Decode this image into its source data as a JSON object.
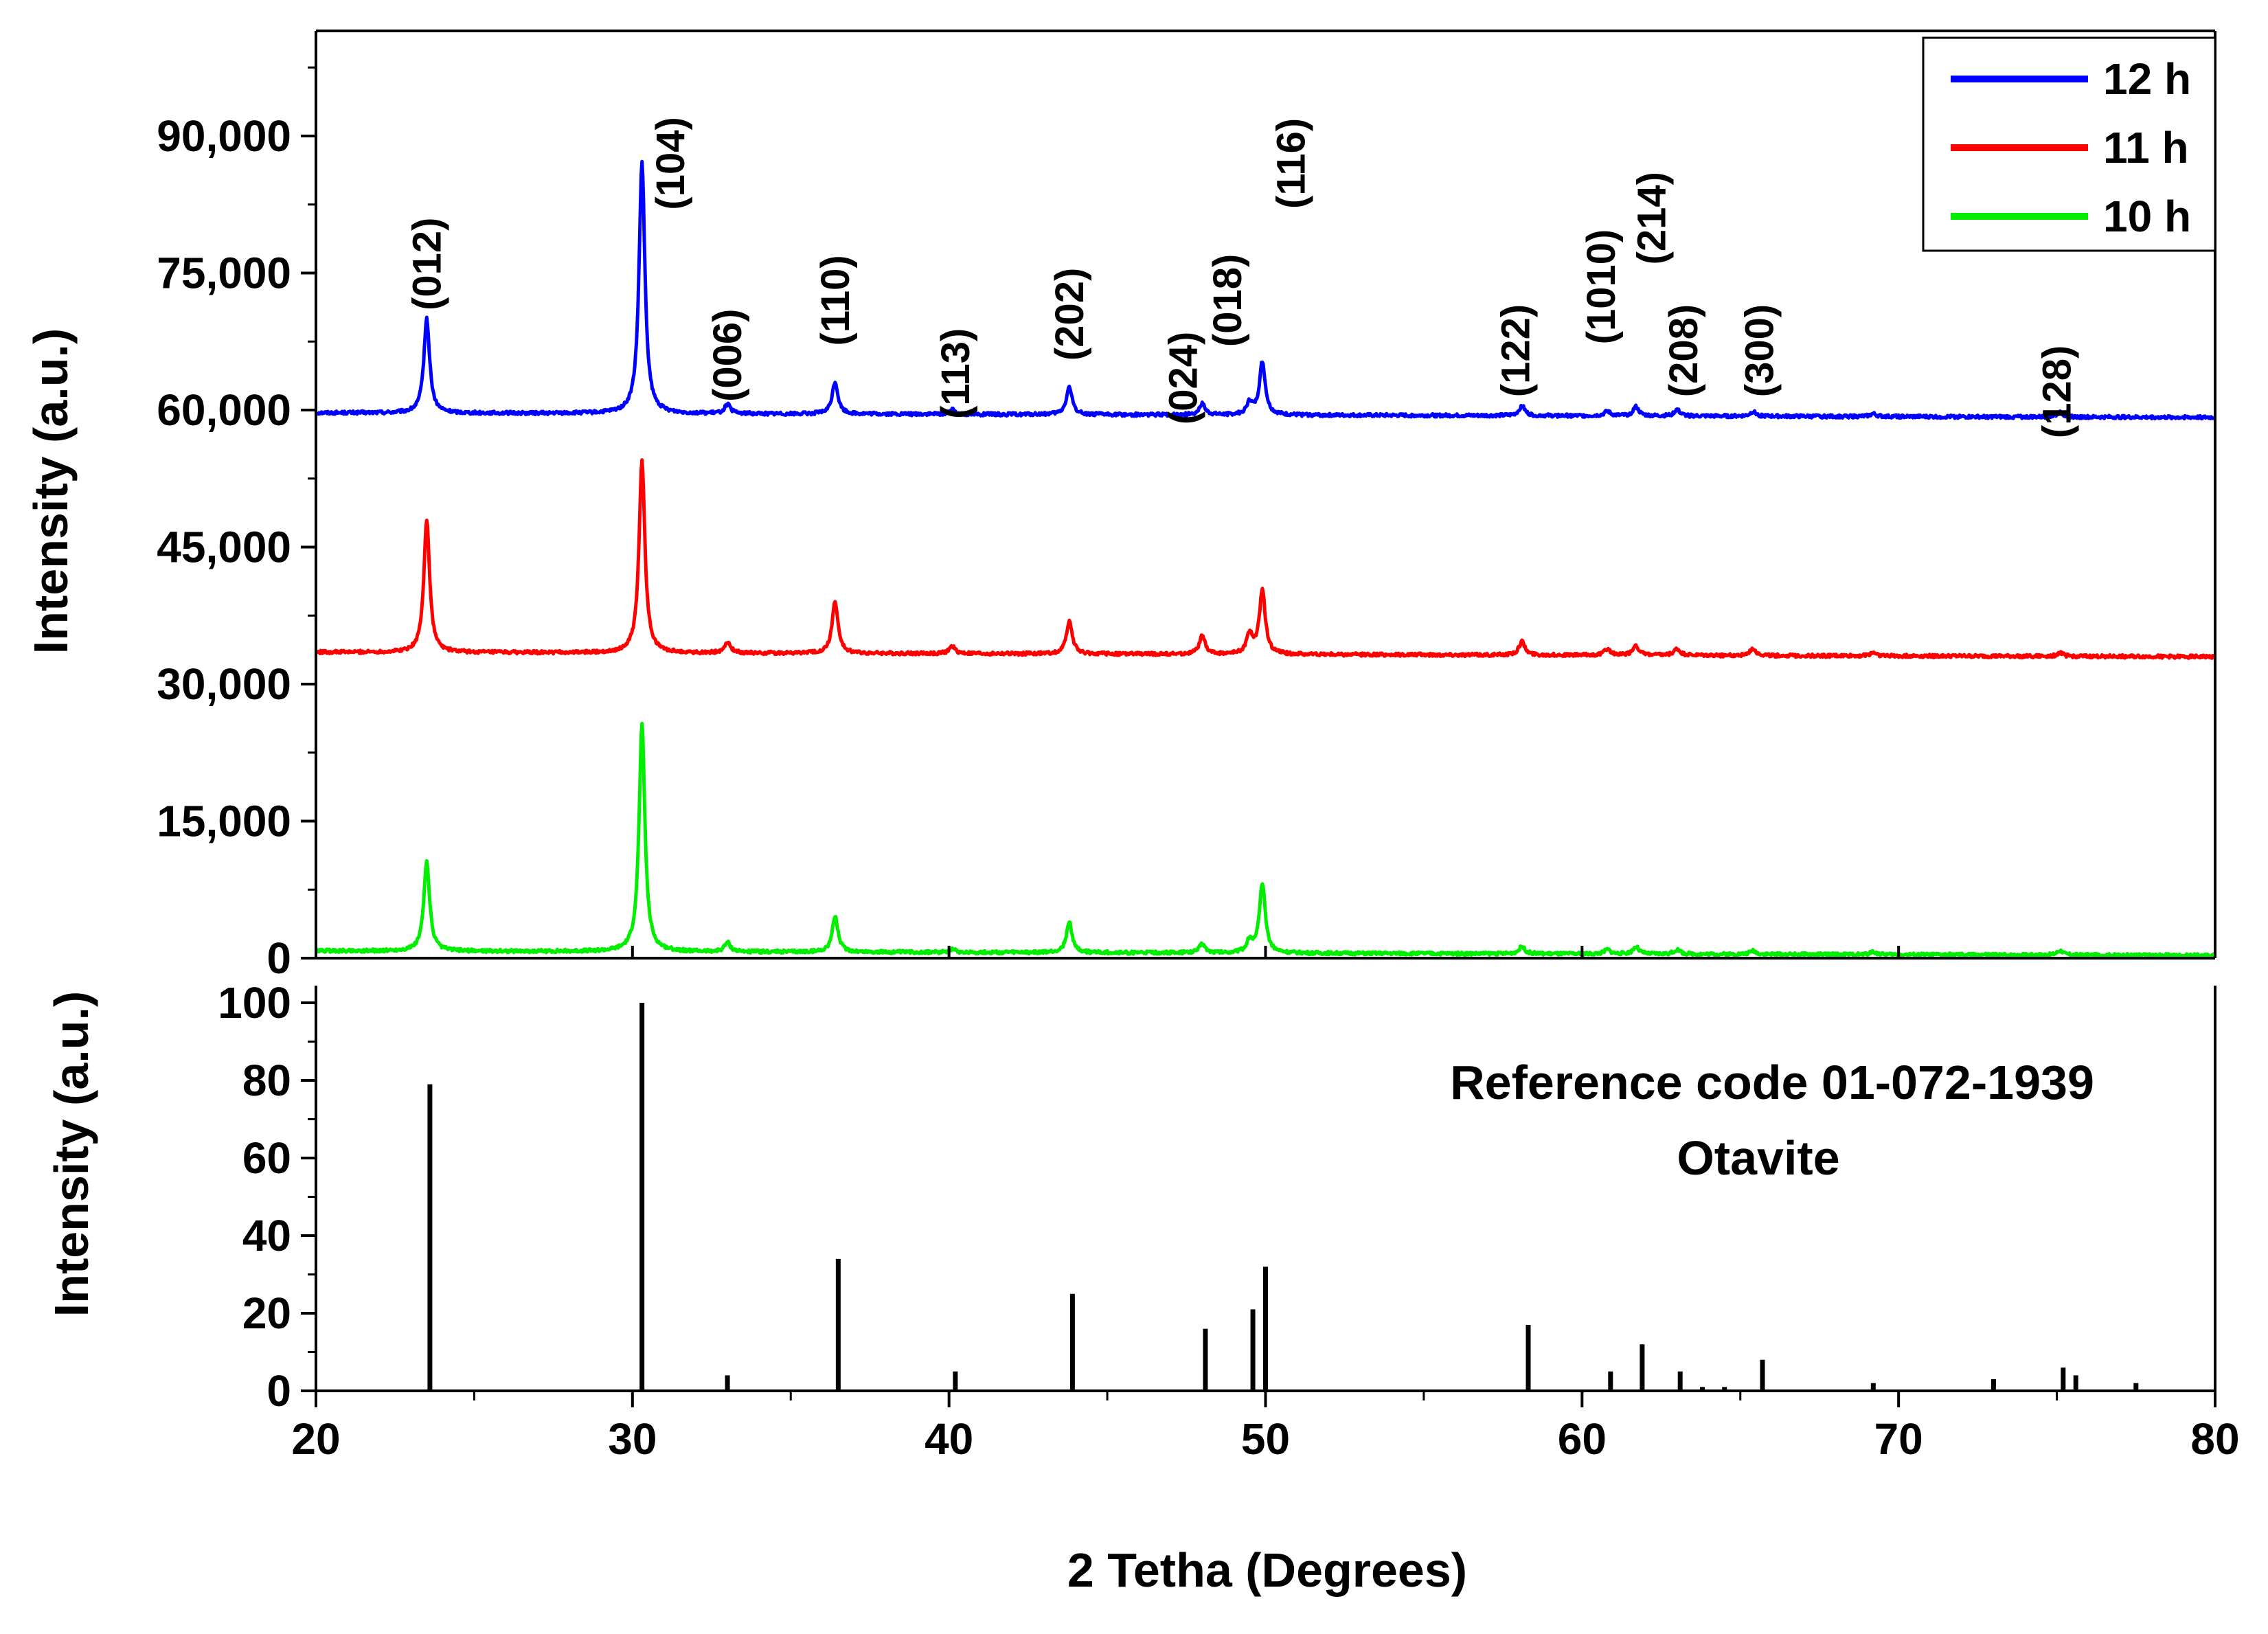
{
  "chart_data": {
    "type": "line",
    "xlabel": "2 Tetha (Degrees)",
    "xlim": [
      20,
      80
    ],
    "x_ticks": [
      "20",
      "30",
      "40",
      "50",
      "60",
      "70",
      "80"
    ],
    "panels": [
      {
        "name": "xrd-patterns",
        "ylabel": "Intensity (a.u.)",
        "ylim": [
          0,
          100000
        ],
        "y_ticks": [
          "0",
          "15,000",
          "30,000",
          "45,000",
          "60,000",
          "75,000",
          "90,000"
        ],
        "y_tick_values": [
          0,
          15000,
          30000,
          45000,
          60000,
          75000,
          90000
        ],
        "series": [
          {
            "name": "12 h",
            "color": "#0000ff",
            "baseline": 59700,
            "end_baseline": 59200,
            "peaks": [
              [
                23.5,
                10300
              ],
              [
                30.3,
                27500
              ],
              [
                33.0,
                1000
              ],
              [
                36.4,
                3500
              ],
              [
                40.1,
                500
              ],
              [
                43.8,
                3000
              ],
              [
                48.0,
                1200
              ],
              [
                49.5,
                1300
              ],
              [
                49.9,
                5800
              ],
              [
                58.1,
                1100
              ],
              [
                60.8,
                500
              ],
              [
                61.7,
                1000
              ],
              [
                63.0,
                700
              ],
              [
                65.4,
                500
              ],
              [
                69.2,
                300
              ],
              [
                75.1,
                500
              ]
            ]
          },
          {
            "name": "11 h",
            "color": "#ff0000",
            "baseline": 33500,
            "end_baseline": 33000,
            "peaks": [
              [
                23.5,
                14500
              ],
              [
                30.3,
                21000
              ],
              [
                33.0,
                1200
              ],
              [
                36.4,
                5700
              ],
              [
                40.1,
                800
              ],
              [
                43.8,
                3600
              ],
              [
                48.0,
                2000
              ],
              [
                49.5,
                2200
              ],
              [
                49.9,
                7000
              ],
              [
                58.1,
                1500
              ],
              [
                60.8,
                700
              ],
              [
                61.7,
                1100
              ],
              [
                63.0,
                700
              ],
              [
                65.4,
                800
              ],
              [
                69.2,
                400
              ],
              [
                75.1,
                400
              ]
            ]
          },
          {
            "name": "10 h",
            "color": "#00ee00",
            "baseline": 800,
            "end_baseline": 300,
            "peaks": [
              [
                23.5,
                9800
              ],
              [
                30.3,
                24800
              ],
              [
                33.0,
                1000
              ],
              [
                36.4,
                3900
              ],
              [
                40.1,
                400
              ],
              [
                43.8,
                3300
              ],
              [
                48.0,
                1000
              ],
              [
                49.5,
                1300
              ],
              [
                49.9,
                7600
              ],
              [
                58.1,
                800
              ],
              [
                60.8,
                500
              ],
              [
                61.7,
                800
              ],
              [
                63.0,
                500
              ],
              [
                65.4,
                400
              ],
              [
                69.2,
                300
              ],
              [
                75.1,
                500
              ]
            ]
          }
        ],
        "peak_labels": [
          {
            "hkl": "(012)",
            "x": 23.5,
            "y": 76000
          },
          {
            "hkl": "(104)",
            "x": 31.2,
            "y": 87000
          },
          {
            "hkl": "(006)",
            "x": 33.0,
            "y": 66000
          },
          {
            "hkl": "(110)",
            "x": 36.4,
            "y": 72000
          },
          {
            "hkl": "(113)",
            "x": 40.2,
            "y": 64000
          },
          {
            "hkl": "(202)",
            "x": 43.8,
            "y": 70500
          },
          {
            "hkl": "(024)",
            "x": 47.4,
            "y": 63500
          },
          {
            "hkl": "(018)",
            "x": 48.8,
            "y": 72000
          },
          {
            "hkl": "(116)",
            "x": 50.8,
            "y": 87000
          },
          {
            "hkl": "(122)",
            "x": 57.9,
            "y": 66500
          },
          {
            "hkl": "(1010)",
            "x": 60.6,
            "y": 73500
          },
          {
            "hkl": "(214)",
            "x": 62.2,
            "y": 81000
          },
          {
            "hkl": "(208)",
            "x": 63.2,
            "y": 66500
          },
          {
            "hkl": "(300)",
            "x": 65.6,
            "y": 66500
          },
          {
            "hkl": "(128)",
            "x": 75.0,
            "y": 62000
          }
        ],
        "legend": {
          "position": "top-right",
          "entries": [
            "12 h",
            "11 h",
            "10 h"
          ]
        }
      },
      {
        "name": "reference-pattern",
        "ylabel": "Intensity (a.u.)",
        "ylim": [
          0,
          100
        ],
        "y_ticks": [
          "0",
          "20",
          "40",
          "60",
          "80",
          "100"
        ],
        "y_tick_values": [
          0,
          20,
          40,
          60,
          80,
          100
        ],
        "annotation": [
          "Reference code 01-072-1939",
          "Otavite"
        ],
        "sticks": [
          {
            "x": 23.6,
            "y": 79
          },
          {
            "x": 30.3,
            "y": 100
          },
          {
            "x": 33.0,
            "y": 4
          },
          {
            "x": 36.5,
            "y": 34
          },
          {
            "x": 40.2,
            "y": 5
          },
          {
            "x": 43.9,
            "y": 25
          },
          {
            "x": 48.1,
            "y": 16
          },
          {
            "x": 49.6,
            "y": 21
          },
          {
            "x": 50.0,
            "y": 32
          },
          {
            "x": 58.3,
            "y": 17
          },
          {
            "x": 60.9,
            "y": 5
          },
          {
            "x": 61.9,
            "y": 12
          },
          {
            "x": 63.1,
            "y": 5
          },
          {
            "x": 63.8,
            "y": 1
          },
          {
            "x": 64.5,
            "y": 1
          },
          {
            "x": 65.7,
            "y": 8
          },
          {
            "x": 69.2,
            "y": 2
          },
          {
            "x": 73.0,
            "y": 3
          },
          {
            "x": 75.2,
            "y": 6
          },
          {
            "x": 75.6,
            "y": 4
          },
          {
            "x": 77.5,
            "y": 2
          }
        ]
      }
    ]
  }
}
